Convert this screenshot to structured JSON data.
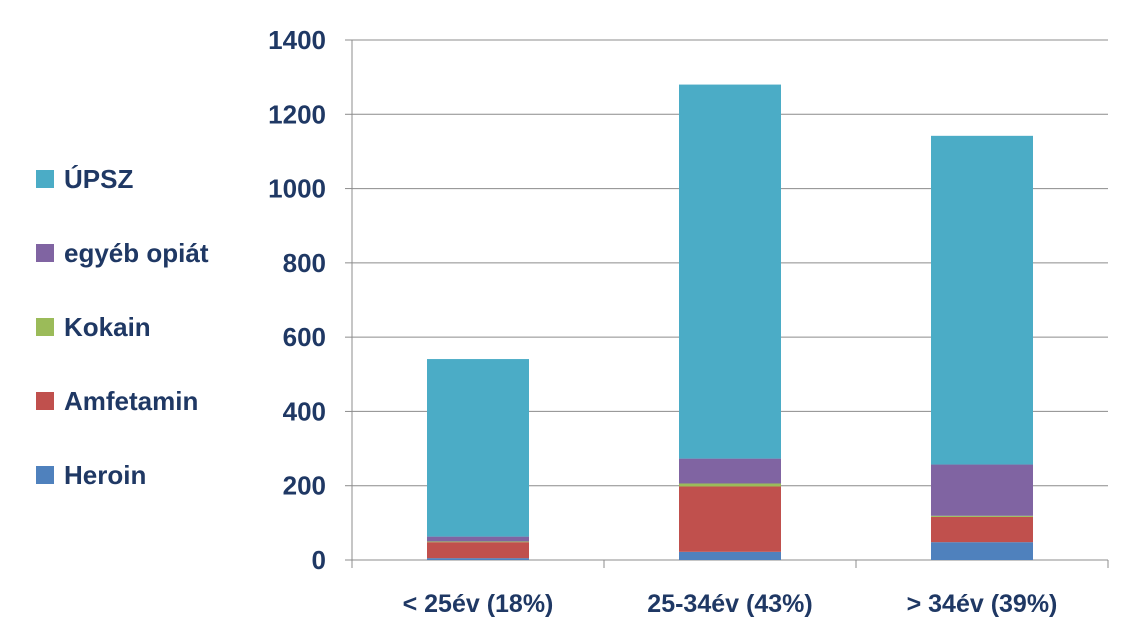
{
  "chart_data": {
    "type": "bar",
    "stacked": true,
    "categories": [
      "< 25év (18%)",
      "25-34év (43%)",
      "> 34év (39%)"
    ],
    "series": [
      {
        "name": "Heroin",
        "color": "#4F81BD",
        "values": [
          5,
          22,
          48
        ]
      },
      {
        "name": "Amfetamin",
        "color": "#C0504D",
        "values": [
          43,
          176,
          68
        ]
      },
      {
        "name": "Kokain",
        "color": "#9BBB59",
        "values": [
          2,
          8,
          3
        ]
      },
      {
        "name": "egyéb opiát",
        "color": "#8064A2",
        "values": [
          13,
          67,
          138
        ]
      },
      {
        "name": "ÚPSZ",
        "color": "#4BACC6",
        "values": [
          478,
          1007,
          885
        ]
      }
    ],
    "yticks": [
      0,
      200,
      400,
      600,
      800,
      1000,
      1200,
      1400
    ],
    "ylim": [
      0,
      1400
    ],
    "grid": true,
    "legend_position": "left",
    "title": "",
    "xlabel": "",
    "ylabel": ""
  }
}
